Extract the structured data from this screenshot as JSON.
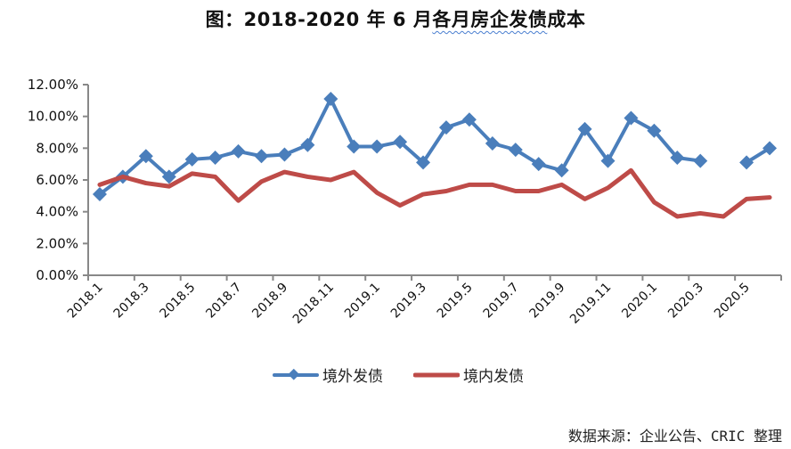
{
  "title": {
    "prefix": "图：2018-2020 年 6 月",
    "underlined": "各月房企发债",
    "suffix": "成本"
  },
  "legend": {
    "items": [
      {
        "label": "境外发债",
        "color": "#4A7EBB",
        "marker": "diamond"
      },
      {
        "label": "境内发债",
        "color": "#BE4B48",
        "marker": "none"
      }
    ]
  },
  "source": "数据来源：企业公告、CRIC 整理",
  "chart_data": {
    "type": "line",
    "title": "图：2018-2020 年 6 月各月房企发债成本",
    "xlabel": "",
    "ylabel": "",
    "ylim": [
      0,
      12
    ],
    "y_ticks": [
      "0.00%",
      "2.00%",
      "4.00%",
      "6.00%",
      "8.00%",
      "10.00%",
      "12.00%"
    ],
    "x_tick_labels": [
      "2018.1",
      "2018.3",
      "2018.5",
      "2018.7",
      "2018.9",
      "2018.11",
      "2019.1",
      "2019.3",
      "2019.5",
      "2019.7",
      "2019.9",
      "2019.11",
      "2020.1",
      "2020.3",
      "2020.5"
    ],
    "grid": false,
    "legend_position": "bottom",
    "categories": [
      "2018.1",
      "2018.2",
      "2018.3",
      "2018.4",
      "2018.5",
      "2018.6",
      "2018.7",
      "2018.8",
      "2018.9",
      "2018.10",
      "2018.11",
      "2018.12",
      "2019.1",
      "2019.2",
      "2019.3",
      "2019.4",
      "2019.5",
      "2019.6",
      "2019.7",
      "2019.8",
      "2019.9",
      "2019.10",
      "2019.11",
      "2019.12",
      "2020.1",
      "2020.2",
      "2020.3",
      "2020.4",
      "2020.5",
      "2020.6"
    ],
    "series": [
      {
        "name": "境外发债",
        "color": "#4A7EBB",
        "values": [
          5.1,
          6.2,
          7.5,
          6.2,
          7.3,
          7.4,
          7.8,
          7.5,
          7.6,
          8.2,
          11.1,
          8.1,
          8.1,
          8.4,
          7.1,
          9.3,
          9.8,
          8.3,
          7.9,
          7.0,
          6.6,
          9.2,
          7.2,
          9.9,
          9.1,
          7.4,
          7.2,
          null,
          7.1,
          8.0
        ]
      },
      {
        "name": "境内发债",
        "color": "#BE4B48",
        "values": [
          5.7,
          6.2,
          5.8,
          5.6,
          6.4,
          6.2,
          4.7,
          5.9,
          6.5,
          6.2,
          6.0,
          6.5,
          5.2,
          4.4,
          5.1,
          5.3,
          5.7,
          5.7,
          5.3,
          5.3,
          5.7,
          4.8,
          5.5,
          6.6,
          4.6,
          3.7,
          3.9,
          3.7,
          4.8,
          4.9
        ]
      }
    ]
  }
}
